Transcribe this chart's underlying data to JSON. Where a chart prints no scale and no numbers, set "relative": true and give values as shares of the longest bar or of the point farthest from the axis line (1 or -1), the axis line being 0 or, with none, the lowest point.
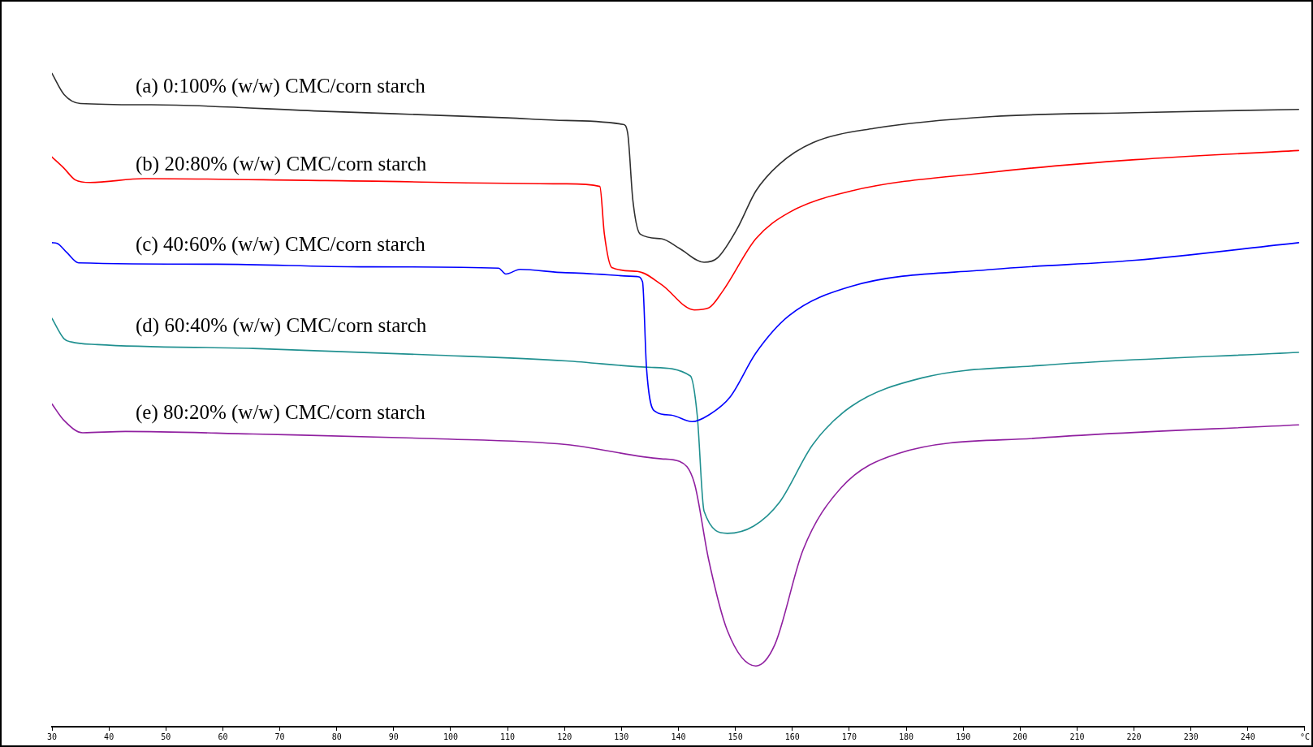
{
  "chart_data": {
    "type": "line",
    "relative": true,
    "legend": false,
    "grid": false,
    "marker": "none",
    "line_style": "solid",
    "tick_labels": "x",
    "xlim": [
      30,
      250
    ],
    "xticks": [
      30,
      40,
      50,
      60,
      70,
      80,
      90,
      100,
      110,
      120,
      130,
      140,
      150,
      160,
      170,
      180,
      190,
      200,
      210,
      220,
      230,
      240,
      {
        "value": 250,
        "label": "°C"
      }
    ],
    "series": [
      {
        "name": "(a) 0:100% (w/w) CMC/corn starch",
        "color": "#303030",
        "x": [
          30,
          32.1,
          35,
          47.4,
          78,
          110,
          120.3,
          130.3,
          131.1,
          132,
          133.3,
          137,
          140.2,
          144.5,
          146.9,
          150.3,
          153.6,
          157.7,
          163.6,
          174.4,
          195.2,
          220.2,
          248.9
        ],
        "values": [
          1.0,
          0.968,
          0.954,
          0.952,
          0.942,
          0.932,
          0.928,
          0.922,
          0.908,
          0.806,
          0.754,
          0.747,
          0.732,
          0.711,
          0.718,
          0.762,
          0.82,
          0.861,
          0.894,
          0.916,
          0.934,
          0.94,
          0.945
        ]
      },
      {
        "name": "(b) 20:80% (w/w) CMC/corn starch",
        "color": "#ff0000",
        "x": [
          30,
          32.1,
          34.1,
          36.7,
          46.2,
          78,
          120.3,
          126.2,
          127,
          128.3,
          132.8,
          137,
          142.8,
          145.3,
          147.8,
          153.6,
          159.4,
          170.3,
          195.2,
          220.2,
          248.9
        ],
        "values": [
          0.872,
          0.855,
          0.837,
          0.833,
          0.839,
          0.836,
          0.831,
          0.827,
          0.754,
          0.703,
          0.697,
          0.677,
          0.638,
          0.641,
          0.667,
          0.747,
          0.787,
          0.82,
          0.849,
          0.868,
          0.882
        ]
      },
      {
        "name": "(c) 40:60% (w/w) CMC/corn starch",
        "color": "#0000ff",
        "x": [
          30,
          30.9,
          32.6,
          34.7,
          58.9,
          84.2,
          108.4,
          109.7,
          112.2,
          120.3,
          132.8,
          133.7,
          134.4,
          135.7,
          138.7,
          142.4,
          145.3,
          149.1,
          153.6,
          159.4,
          170.3,
          195.2,
          220.2,
          248.9
        ],
        "values": [
          0.741,
          0.74,
          0.726,
          0.71,
          0.708,
          0.704,
          0.702,
          0.693,
          0.7,
          0.695,
          0.689,
          0.681,
          0.549,
          0.484,
          0.477,
          0.467,
          0.477,
          0.505,
          0.572,
          0.629,
          0.674,
          0.7,
          0.714,
          0.741
        ]
      },
      {
        "name": "(d) 60:40% (w/w) CMC/corn starch",
        "color": "#209090",
        "x": [
          30,
          32.1,
          33.4,
          38,
          65.3,
          97,
          120.3,
          135.3,
          142.1,
          143.3,
          144.5,
          148.6,
          153.2,
          157.7,
          163.6,
          170.3,
          182.8,
          203.5,
          248.9
        ],
        "values": [
          0.625,
          0.594,
          0.589,
          0.585,
          0.579,
          0.569,
          0.56,
          0.55,
          0.537,
          0.477,
          0.33,
          0.296,
          0.307,
          0.343,
          0.432,
          0.49,
          0.534,
          0.553,
          0.573
        ]
      },
      {
        "name": "(e) 80:20% (w/w) CMC/corn starch",
        "color": "#9020a0",
        "x": [
          30,
          32.1,
          35.4,
          42.9,
          65.3,
          97,
          120.3,
          137,
          140.2,
          142.8,
          145.3,
          148.6,
          153.6,
          156.9,
          161.9,
          168.6,
          178.5,
          203.5,
          248.9
        ],
        "values": [
          0.494,
          0.469,
          0.45,
          0.452,
          0.448,
          0.441,
          0.432,
          0.41,
          0.406,
          0.373,
          0.256,
          0.147,
          0.093,
          0.125,
          0.271,
          0.366,
          0.418,
          0.442,
          0.462
        ]
      }
    ]
  }
}
